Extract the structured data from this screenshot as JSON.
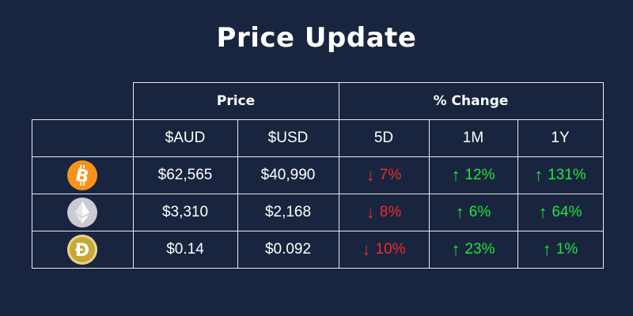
{
  "title": "Price Update",
  "headers": {
    "price_group": "Price",
    "change_group": "% Change",
    "aud": "$AUD",
    "usd": "$USD",
    "d5": "5D",
    "m1": "1M",
    "y1": "1Y"
  },
  "rows": [
    {
      "coin_icon": "bitcoin-icon",
      "aud": "$62,565",
      "usd": "$40,990",
      "d5": {
        "dir": "down",
        "arrow": "↓",
        "value": "7%"
      },
      "m1": {
        "dir": "up",
        "arrow": "↑",
        "value": "12%"
      },
      "y1": {
        "dir": "up",
        "arrow": "↑",
        "value": "131%"
      }
    },
    {
      "coin_icon": "ethereum-icon",
      "aud": "$3,310",
      "usd": "$2,168",
      "d5": {
        "dir": "down",
        "arrow": "↓",
        "value": "8%"
      },
      "m1": {
        "dir": "up",
        "arrow": "↑",
        "value": "6%"
      },
      "y1": {
        "dir": "up",
        "arrow": "↑",
        "value": "64%"
      }
    },
    {
      "coin_icon": "dogecoin-icon",
      "aud": "$0.14",
      "usd": "$0.092",
      "d5": {
        "dir": "down",
        "arrow": "↓",
        "value": "10%"
      },
      "m1": {
        "dir": "up",
        "arrow": "↑",
        "value": "23%"
      },
      "y1": {
        "dir": "up",
        "arrow": "↑",
        "value": "1%"
      }
    }
  ],
  "colors": {
    "background": "#19253e",
    "down": "#ef2b2b",
    "up": "#1ee640",
    "bitcoin": "#f7931a",
    "ethereum": "#c9cbd1",
    "dogecoin": "#c6a83a"
  }
}
